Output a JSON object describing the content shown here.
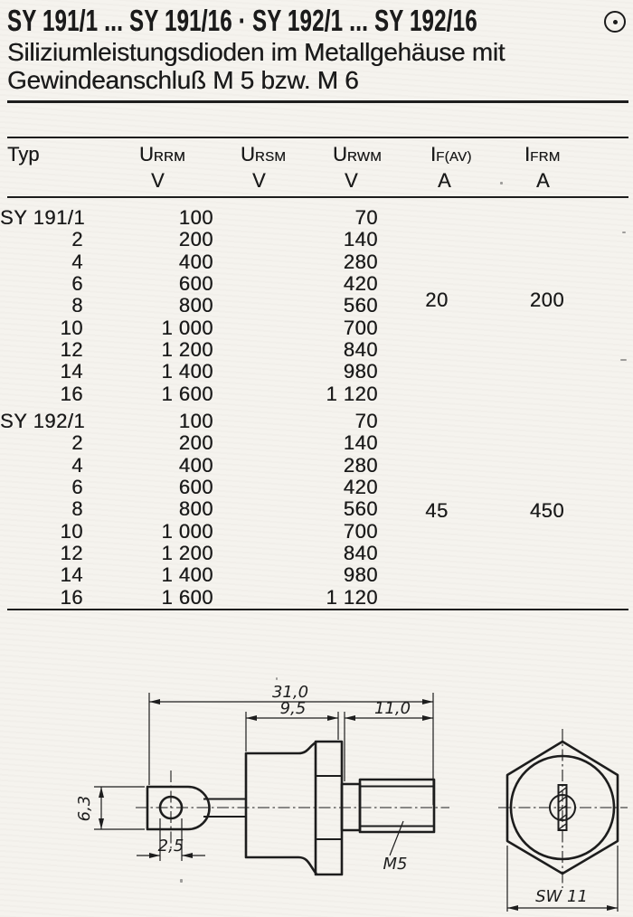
{
  "page": {
    "title": "SY 191/1 ... SY 191/16 · SY 192/1 ... SY 192/16",
    "subtitle_line1": "Siliziumleistungsdioden im Metallgehäuse mit",
    "subtitle_line2": "Gewindeanschluß M 5 bzw. M 6",
    "logo_icon": "circle-dot"
  },
  "table": {
    "typ_label": "Typ",
    "headers": [
      {
        "sym": "U",
        "sub": "RRM",
        "unit": "V"
      },
      {
        "sym": "U",
        "sub": "RSM",
        "unit": "V"
      },
      {
        "sym": "U",
        "sub": "RWM",
        "unit": "V"
      },
      {
        "sym": "I",
        "sub": "F(AV)",
        "unit": "A"
      },
      {
        "sym": "I",
        "sub": "FRM",
        "unit": "A"
      }
    ],
    "sections": [
      {
        "name": "SY 191",
        "if_av": "20",
        "ifrm": "200",
        "rows": [
          {
            "typ": "SY 191/1",
            "urrm": "100",
            "ursm": "",
            "urwm": "70"
          },
          {
            "typ": "2",
            "urrm": "200",
            "ursm": "",
            "urwm": "140"
          },
          {
            "typ": "4",
            "urrm": "400",
            "ursm": "",
            "urwm": "280"
          },
          {
            "typ": "6",
            "urrm": "600",
            "ursm": "",
            "urwm": "420"
          },
          {
            "typ": "8",
            "urrm": "800",
            "ursm": "",
            "urwm": "560"
          },
          {
            "typ": "10",
            "urrm": "1 000",
            "ursm": "",
            "urwm": "700"
          },
          {
            "typ": "12",
            "urrm": "1 200",
            "ursm": "",
            "urwm": "840"
          },
          {
            "typ": "14",
            "urrm": "1 400",
            "ursm": "",
            "urwm": "980"
          },
          {
            "typ": "16",
            "urrm": "1 600",
            "ursm": "",
            "urwm": "1 120"
          }
        ]
      },
      {
        "name": "SY 192",
        "if_av": "45",
        "ifrm": "450",
        "rows": [
          {
            "typ": "SY 192/1",
            "urrm": "100",
            "ursm": "",
            "urwm": "70"
          },
          {
            "typ": "2",
            "urrm": "200",
            "ursm": "",
            "urwm": "140"
          },
          {
            "typ": "4",
            "urrm": "400",
            "ursm": "",
            "urwm": "280"
          },
          {
            "typ": "6",
            "urrm": "600",
            "ursm": "",
            "urwm": "420"
          },
          {
            "typ": "8",
            "urrm": "800",
            "ursm": "",
            "urwm": "560"
          },
          {
            "typ": "10",
            "urrm": "1 000",
            "ursm": "",
            "urwm": "700"
          },
          {
            "typ": "12",
            "urrm": "1 200",
            "ursm": "",
            "urwm": "840"
          },
          {
            "typ": "14",
            "urrm": "1 400",
            "ursm": "",
            "urwm": "980"
          },
          {
            "typ": "16",
            "urrm": "1 600",
            "ursm": "",
            "urwm": "1 120"
          }
        ]
      }
    ]
  },
  "drawing": {
    "dims": {
      "overall_length": "31,0",
      "body_length": "9,5",
      "stud_length": "11,0",
      "tag_height": "6,3",
      "hole_diameter": "2,5",
      "thread_label": "M5",
      "wrench_size": "SW 11"
    }
  }
}
